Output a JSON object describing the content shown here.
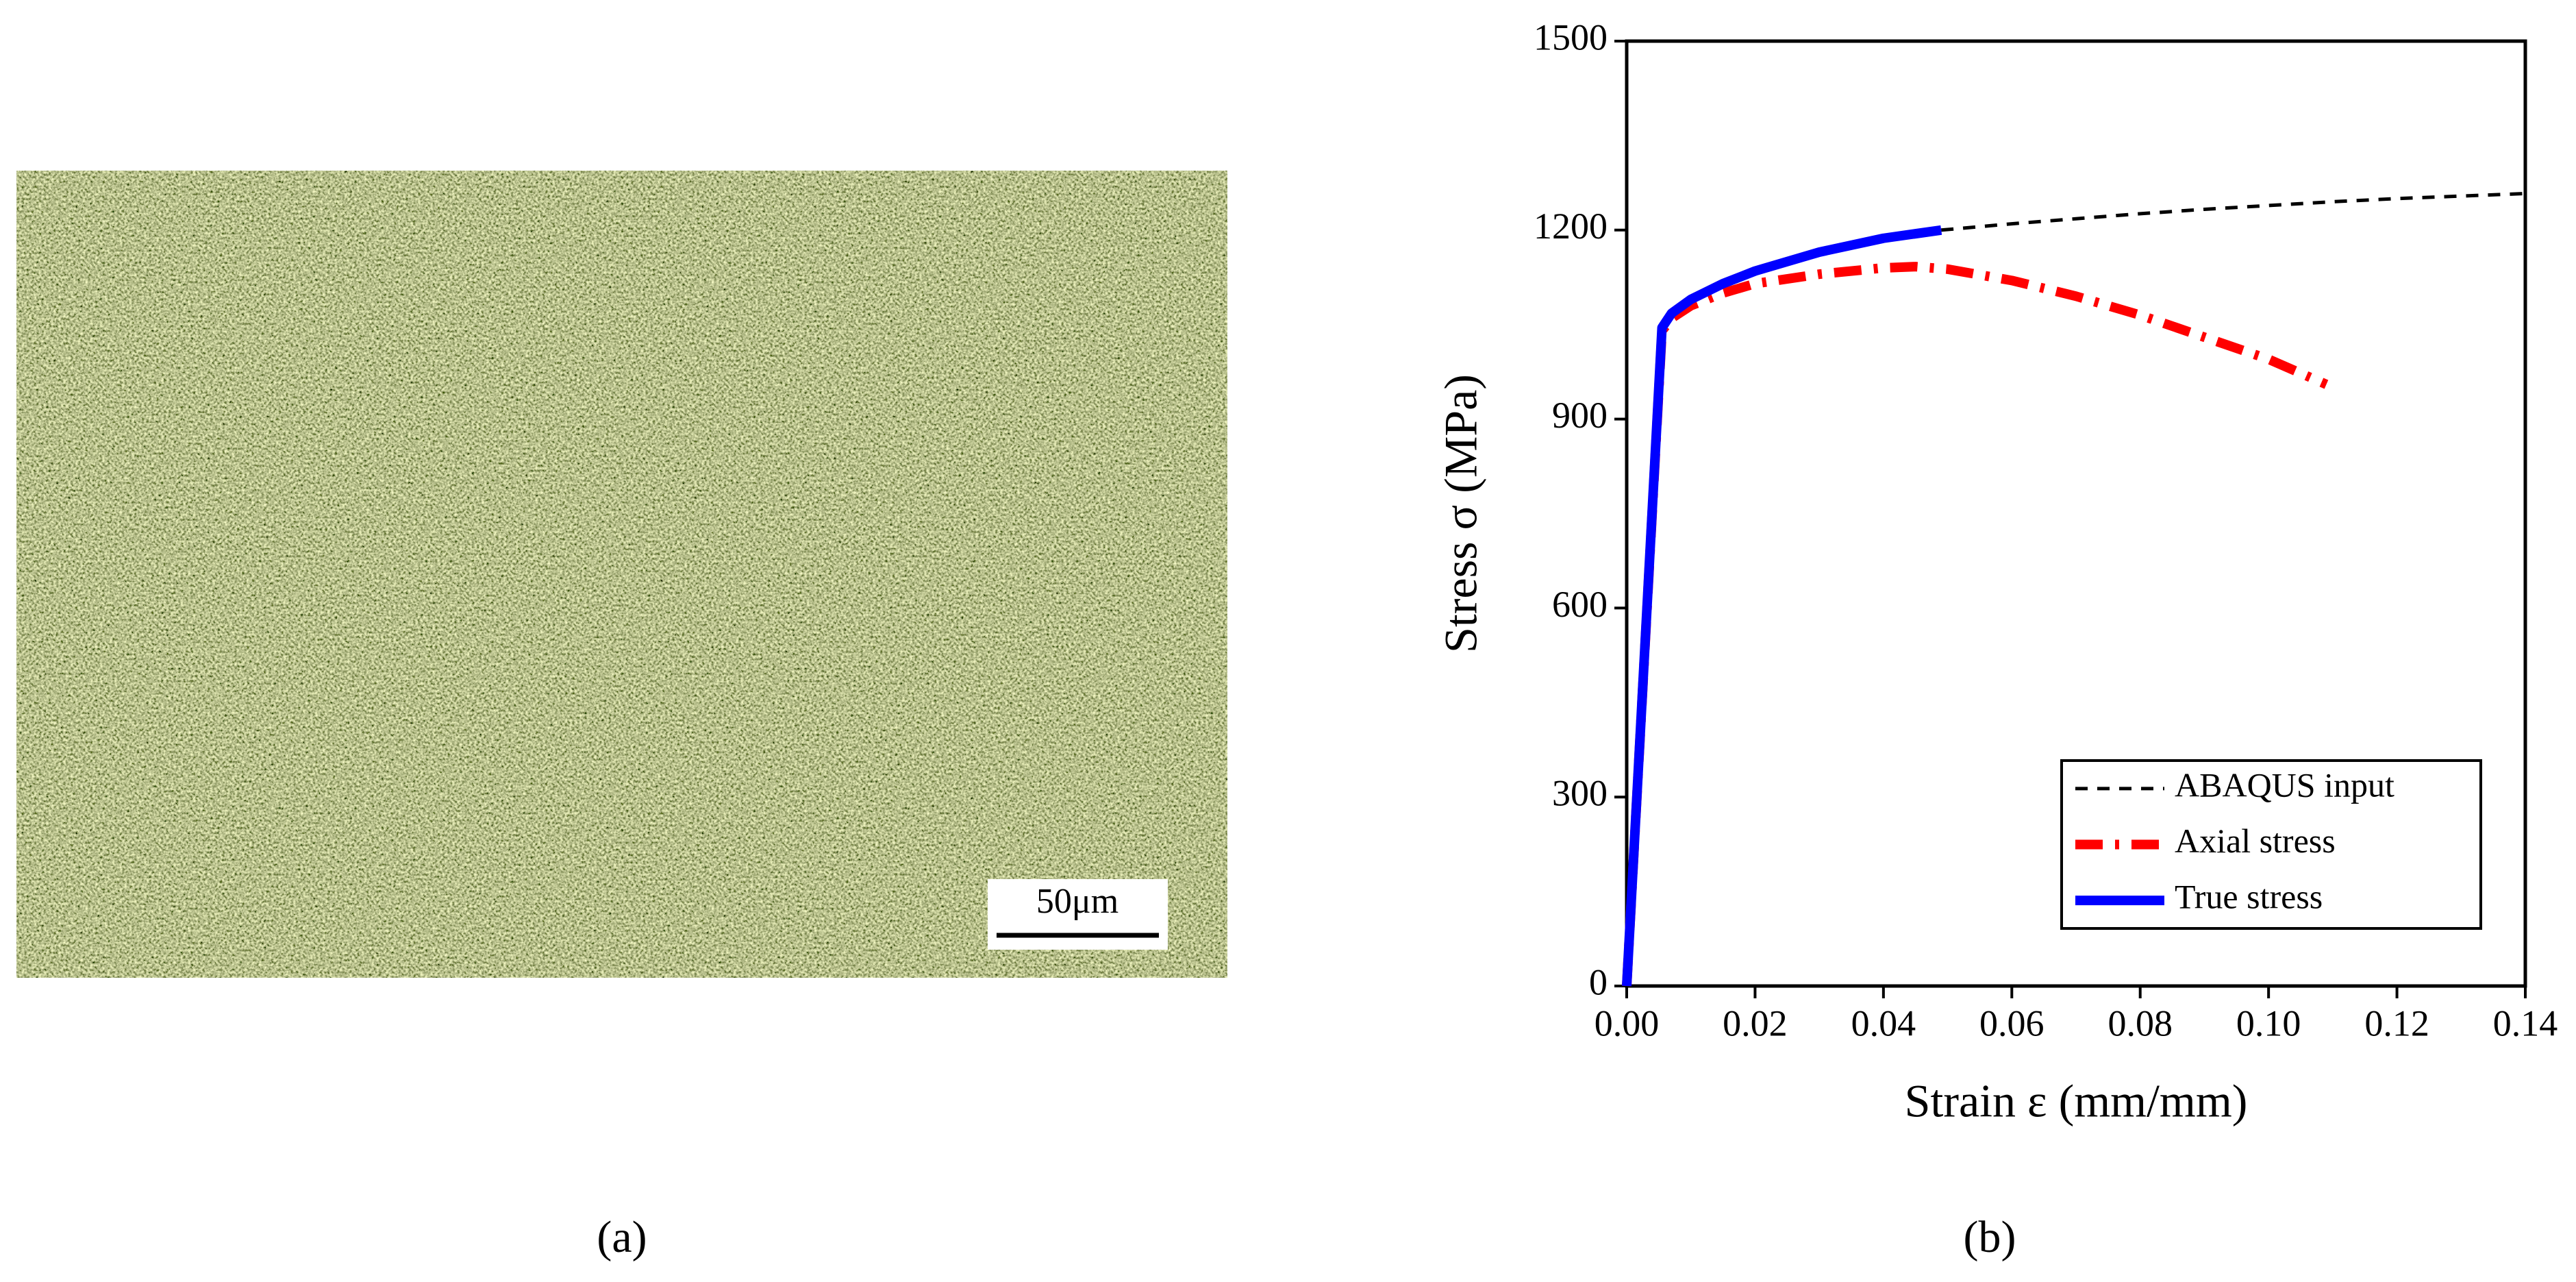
{
  "micrograph": {
    "scale_bar": "50μm",
    "caption": "(a)"
  },
  "chart_data": {
    "type": "line",
    "caption": "(b)",
    "x_label": "Strain ε (mm/mm)",
    "y_label": "Stress σ (MPa)",
    "xlim": [
      0,
      0.14
    ],
    "ylim": [
      0,
      1500
    ],
    "xticks": [
      {
        "value": 0,
        "label": "0.00"
      },
      {
        "value": 0.02,
        "label": "0.02"
      },
      {
        "value": 0.04,
        "label": "0.04"
      },
      {
        "value": 0.06,
        "label": "0.06"
      },
      {
        "value": 0.08,
        "label": "0.08"
      },
      {
        "value": 0.1,
        "label": "0.10"
      },
      {
        "value": 0.12,
        "label": "0.12"
      },
      {
        "value": 0.14,
        "label": "0.14"
      }
    ],
    "yticks": [
      0,
      300,
      600,
      900,
      1200,
      1500
    ],
    "legend": "lower right",
    "series": [
      {
        "name": "ABAQUS input",
        "color": "#000000",
        "line_style": "dashed",
        "x": [
          0.049,
          0.06,
          0.07,
          0.08,
          0.09,
          0.1,
          0.11,
          0.12,
          0.13,
          0.14
        ],
        "values": [
          1200,
          1210,
          1218,
          1226,
          1233,
          1239,
          1245,
          1250,
          1254,
          1258
        ]
      },
      {
        "name": "Axial stress",
        "color": "#ff0000",
        "line_style": "dashdot",
        "x": [
          0,
          0.0055,
          0.007,
          0.01,
          0.015,
          0.02,
          0.03,
          0.04,
          0.045,
          0.05,
          0.06,
          0.07,
          0.08,
          0.09,
          0.1,
          0.109
        ],
        "values": [
          0,
          1040,
          1060,
          1080,
          1100,
          1115,
          1130,
          1140,
          1142,
          1138,
          1120,
          1095,
          1065,
          1030,
          995,
          955
        ]
      },
      {
        "name": "True stress",
        "color": "#0000ff",
        "line_style": "solid",
        "x": [
          0,
          0.0055,
          0.007,
          0.01,
          0.015,
          0.02,
          0.03,
          0.04,
          0.049
        ],
        "values": [
          0,
          1045,
          1068,
          1090,
          1115,
          1135,
          1165,
          1187,
          1200
        ]
      }
    ]
  }
}
